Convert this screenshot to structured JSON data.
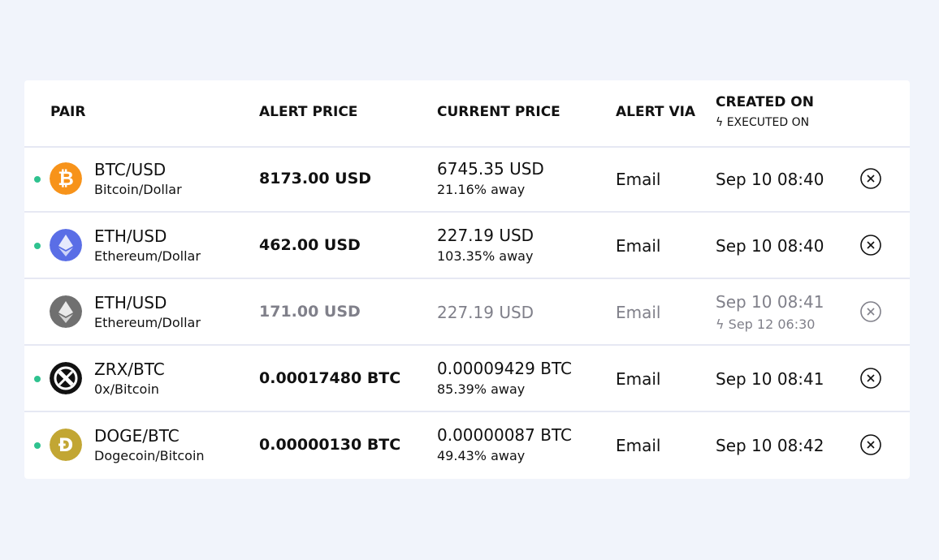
{
  "headers": {
    "pair": "PAIR",
    "alert_price": "ALERT PRICE",
    "current_price": "CURRENT PRICE",
    "alert_via": "ALERT VIA",
    "created_on": "CREATED ON",
    "executed_on": "EXECUTED ON"
  },
  "rows": [
    {
      "pair": "BTC/USD",
      "name": "Bitcoin/Dollar",
      "icon": "bitcoin-icon",
      "color": "#f7931a",
      "alert_price": "8173.00 USD",
      "current_price": "6745.35 USD",
      "away": "21.16% away",
      "via": "Email",
      "created": "Sep 10 08:40",
      "executed": "",
      "active": true
    },
    {
      "pair": "ETH/USD",
      "name": "Ethereum/Dollar",
      "icon": "ethereum-icon",
      "color": "#5a6ee6",
      "alert_price": "462.00 USD",
      "current_price": "227.19 USD",
      "away": "103.35% away",
      "via": "Email",
      "created": "Sep 10 08:40",
      "executed": "",
      "active": true
    },
    {
      "pair": "ETH/USD",
      "name": "Ethereum/Dollar",
      "icon": "ethereum-icon",
      "color": "#707070",
      "alert_price": "171.00 USD",
      "current_price": "227.19 USD",
      "away": "",
      "via": "Email",
      "created": "Sep 10 08:41",
      "executed": "Sep 12 06:30",
      "active": false
    },
    {
      "pair": "ZRX/BTC",
      "name": "0x/Bitcoin",
      "icon": "zrx-icon",
      "color": "#111111",
      "alert_price": "0.00017480 BTC",
      "current_price": "0.00009429 BTC",
      "away": "85.39% away",
      "via": "Email",
      "created": "Sep 10 08:41",
      "executed": "",
      "active": true
    },
    {
      "pair": "DOGE/BTC",
      "name": "Dogecoin/Bitcoin",
      "icon": "dogecoin-icon",
      "color": "#c2a633",
      "alert_price": "0.00000130 BTC",
      "current_price": "0.00000087 BTC",
      "away": "49.43% away",
      "via": "Email",
      "created": "Sep 10 08:42",
      "executed": "",
      "active": true
    }
  ],
  "status_color": "#2fc28f"
}
